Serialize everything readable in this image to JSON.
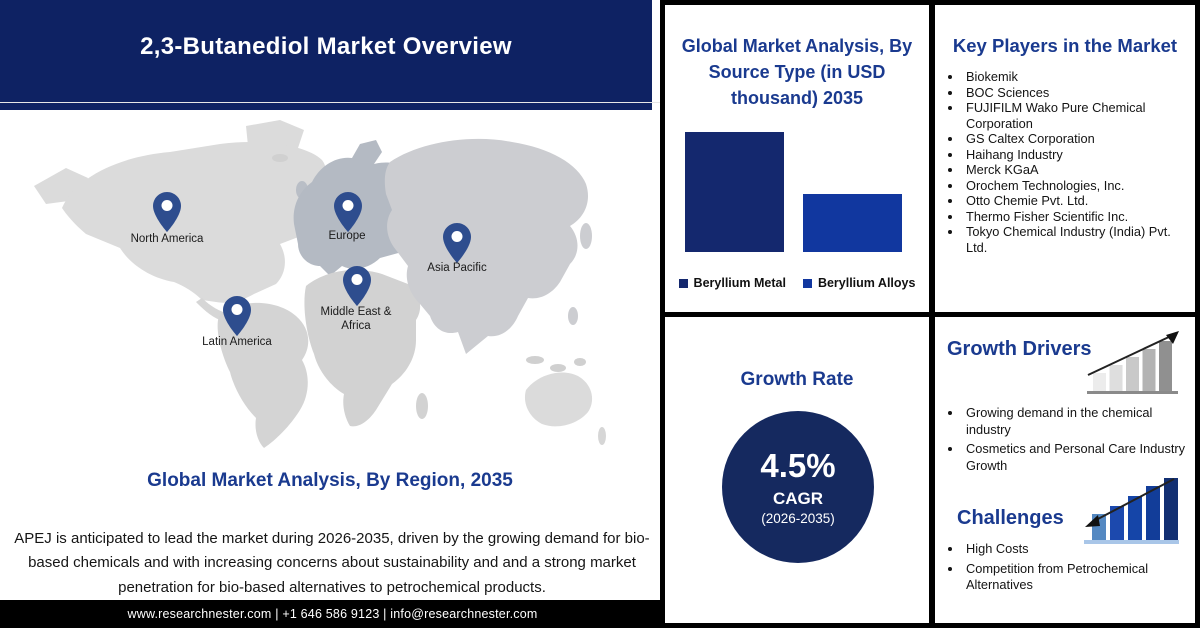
{
  "header": {
    "title": "2,3-Butanediol Market Overview"
  },
  "region_section": {
    "heading": "Global Market Analysis, By Region, 2035",
    "description": "APEJ is anticipated to lead the market during 2026-2035, driven by the growing demand for bio-based chemicals and with increasing concerns about sustainability and and a strong market penetration for bio-based alternatives to petrochemical products.",
    "pin_icon": "location-pin",
    "regions": [
      {
        "label": "North America"
      },
      {
        "label": "Europe"
      },
      {
        "label": "Asia Pacific"
      },
      {
        "label": "Middle East & Africa"
      },
      {
        "label": "Latin America"
      }
    ]
  },
  "chart_data": {
    "type": "bar",
    "title": "Global Market Analysis, By Source Type (in USD thousand) 2035",
    "categories": [
      "Beryllium Metal",
      "Beryllium Alloys"
    ],
    "values": [
      100,
      48
    ],
    "units": "relative bar height % (no axis values shown)",
    "colors": [
      "#14286e",
      "#11379f"
    ],
    "xlabel": "",
    "ylabel": "",
    "grid": false,
    "legend_position": "bottom"
  },
  "growth_rate": {
    "heading": "Growth Rate",
    "value": "4.5%",
    "metric": "CAGR",
    "period": "(2026-2035)"
  },
  "key_players": {
    "heading": "Key Players in the Market",
    "items": [
      "Biokemik",
      "BOC Sciences",
      "FUJIFILM Wako Pure Chemical Corporation",
      "GS Caltex Corporation",
      "Haihang Industry",
      "Merck KGaA",
      "Orochem Technologies, Inc.",
      "Otto Chemie Pvt. Ltd.",
      "Thermo Fisher Scientific Inc.",
      "Tokyo Chemical Industry (India) Pvt. Ltd."
    ]
  },
  "growth_drivers": {
    "heading": "Growth Drivers",
    "icon": "ascending-bar-chart-up-arrow",
    "items": [
      "Growing demand in the chemical industry",
      "Cosmetics and Personal Care Industry Growth"
    ]
  },
  "challenges": {
    "heading": "Challenges",
    "icon": "ascending-bar-chart-down-arrow",
    "items": [
      "High Costs",
      "Competition from Petrochemical Alternatives"
    ]
  },
  "footer": {
    "text": "www.researchnester.com | +1 646 586 9123 | info@researchnester.com"
  },
  "colors": {
    "header_bg": "#0e2263",
    "heading_text": "#1a3a8f",
    "circle_bg": "#15295f",
    "pin": "#2e4d8e",
    "footer_bg": "#000000"
  }
}
